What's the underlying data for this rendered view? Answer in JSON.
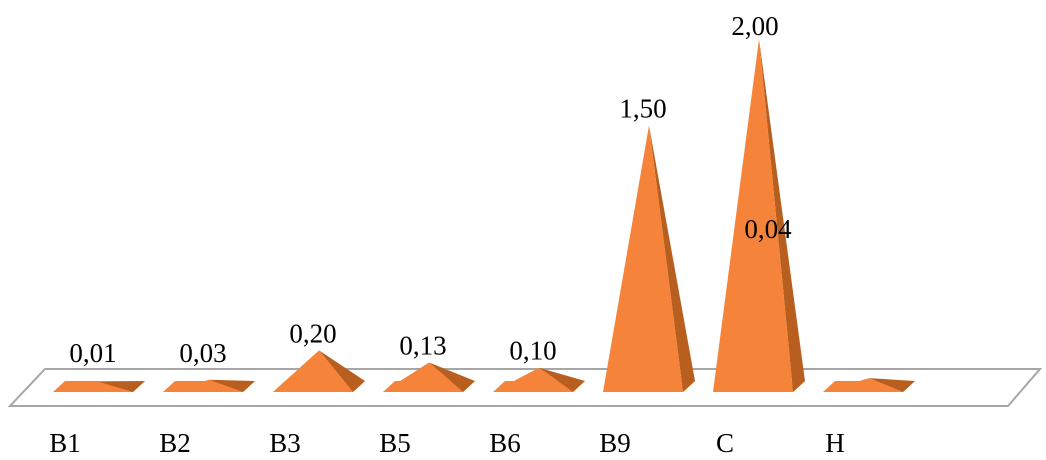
{
  "chart_data": {
    "type": "bar",
    "style": "3d-pyramid",
    "categories": [
      "B1",
      "B2",
      "B3",
      "B5",
      "B6",
      "B9",
      "C",
      "H"
    ],
    "values": [
      0.01,
      0.03,
      0.2,
      0.13,
      0.1,
      1.5,
      2.0,
      0.04
    ],
    "data_labels": [
      "0,01",
      "0,03",
      "0,20",
      "0,13",
      "0,10",
      "1,50",
      "2,00",
      "0,04"
    ],
    "title": "",
    "xlabel": "",
    "ylabel": "",
    "grid": false,
    "legend": "none",
    "colors": {
      "front": "#f5843a",
      "side": "#b85f1f",
      "floor_stroke": "#a6a6a6",
      "floor_fill": "#ffffff"
    }
  }
}
